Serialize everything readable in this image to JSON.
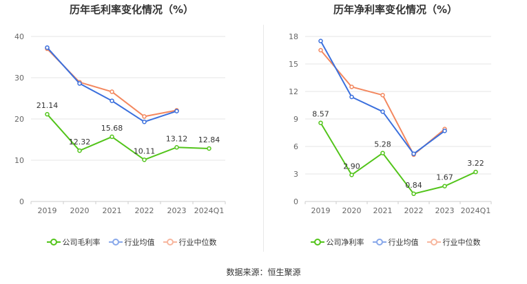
{
  "source": "数据来源：恒生聚源",
  "colors": {
    "company": "#52c41a",
    "industry_avg": "#3a6fdd",
    "industry_median": "#f3875e",
    "grid": "#e6e6e6",
    "axis_text": "#666666"
  },
  "chart_data": [
    {
      "type": "line",
      "title": "历年毛利率变化情况（%）",
      "categories": [
        "2019",
        "2020",
        "2021",
        "2022",
        "2023",
        "2024Q1"
      ],
      "ylim": [
        0,
        40
      ],
      "yticks": [
        0,
        10,
        20,
        30,
        40
      ],
      "grid": true,
      "legend_position": "bottom",
      "series": [
        {
          "name": "公司毛利率",
          "key": "company",
          "values": [
            21.14,
            12.32,
            15.68,
            10.11,
            13.12,
            12.84
          ],
          "labels": [
            "21.14",
            "12.32",
            "15.68",
            "10.11",
            "13.12",
            "12.84"
          ]
        },
        {
          "name": "行业均值",
          "key": "industry_avg",
          "values": [
            37.3,
            28.6,
            24.4,
            19.3,
            21.9,
            null
          ]
        },
        {
          "name": "行业中位数",
          "key": "industry_median",
          "values": [
            37.0,
            28.9,
            26.6,
            20.6,
            22.1,
            null
          ]
        }
      ]
    },
    {
      "type": "line",
      "title": "历年净利率变化情况（%）",
      "categories": [
        "2019",
        "2020",
        "2021",
        "2022",
        "2023",
        "2024Q1"
      ],
      "ylim": [
        0,
        18
      ],
      "yticks": [
        0,
        3,
        6,
        9,
        12,
        15,
        18
      ],
      "grid": true,
      "legend_position": "bottom",
      "series": [
        {
          "name": "公司净利率",
          "key": "company",
          "values": [
            8.57,
            2.9,
            5.28,
            0.84,
            1.67,
            3.22
          ],
          "labels": [
            "8.57",
            "2.90",
            "5.28",
            "0.84",
            "1.67",
            "3.22"
          ]
        },
        {
          "name": "行业均值",
          "key": "industry_avg",
          "values": [
            17.5,
            11.4,
            9.8,
            5.2,
            7.7,
            null
          ]
        },
        {
          "name": "行业中位数",
          "key": "industry_median",
          "values": [
            16.5,
            12.5,
            11.6,
            5.1,
            7.9,
            null
          ]
        }
      ]
    }
  ]
}
